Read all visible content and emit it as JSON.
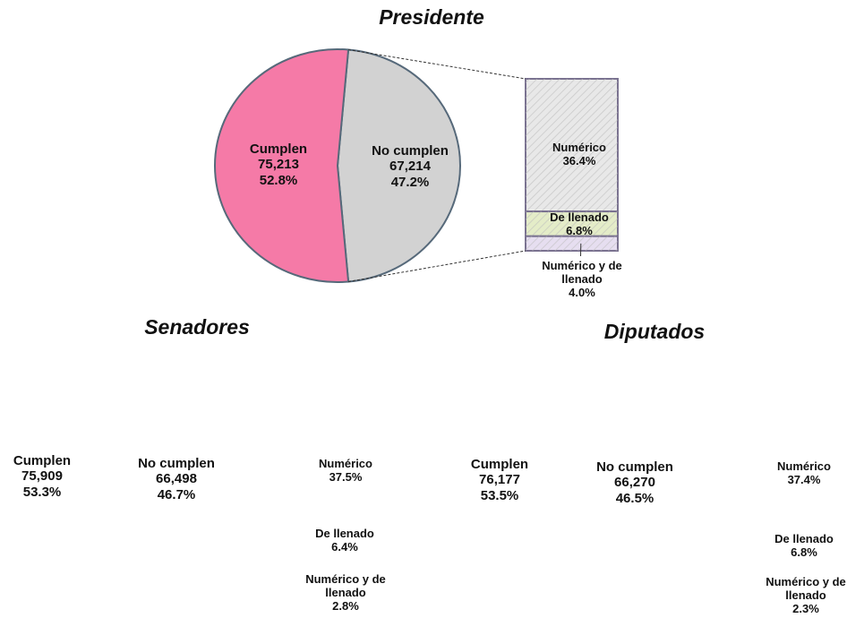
{
  "chart_data": [
    {
      "type": "pie-bar",
      "title": "Presidente",
      "shapes": true,
      "slices": [
        {
          "name": "Cumplen",
          "value": 75213,
          "value_label": "75,213",
          "percent": 52.8,
          "percent_label": "52.8%",
          "color": "#f57aa7"
        },
        {
          "name": "No cumplen",
          "value": 67214,
          "value_label": "67,214",
          "percent": 47.2,
          "percent_label": "47.2%",
          "color": "#d2d2d2"
        }
      ],
      "breakdown": {
        "categories": [
          "Numérico",
          "De llenado",
          "Numérico y de llenado"
        ],
        "values": [
          36.4,
          6.8,
          4.0
        ],
        "value_labels": [
          "36.4%",
          "6.8%",
          "4.0%"
        ],
        "colors": [
          "#e8e8e8",
          "#e4ecc8",
          "#e6def0"
        ]
      }
    },
    {
      "type": "pie-bar",
      "title": "Senadores",
      "shapes": false,
      "slices": [
        {
          "name": "Cumplen",
          "value": 75909,
          "value_label": "75,909",
          "percent": 53.3,
          "percent_label": "53.3%",
          "color": "#f57aa7"
        },
        {
          "name": "No cumplen",
          "value": 66498,
          "value_label": "66,498",
          "percent": 46.7,
          "percent_label": "46.7%",
          "color": "#d2d2d2"
        }
      ],
      "breakdown": {
        "categories": [
          "Numérico",
          "De llenado",
          "Numérico y de llenado"
        ],
        "values": [
          37.5,
          6.4,
          2.8
        ],
        "value_labels": [
          "37.5%",
          "6.4%",
          "2.8%"
        ],
        "colors": [
          "#e8e8e8",
          "#e4ecc8",
          "#e6def0"
        ]
      }
    },
    {
      "type": "pie-bar",
      "title": "Diputados",
      "shapes": false,
      "slices": [
        {
          "name": "Cumplen",
          "value": 76177,
          "value_label": "76,177",
          "percent": 53.5,
          "percent_label": "53.5%",
          "color": "#f57aa7"
        },
        {
          "name": "No cumplen",
          "value": 66270,
          "value_label": "66,270",
          "percent": 46.5,
          "percent_label": "46.5%",
          "color": "#d2d2d2"
        }
      ],
      "breakdown": {
        "categories": [
          "Numérico",
          "De llenado",
          "Numérico y de llenado"
        ],
        "values": [
          37.4,
          6.8,
          2.3
        ],
        "value_labels": [
          "37.4%",
          "6.8%",
          "2.3%"
        ],
        "colors": [
          "#e8e8e8",
          "#e4ecc8",
          "#e6def0"
        ]
      }
    }
  ]
}
